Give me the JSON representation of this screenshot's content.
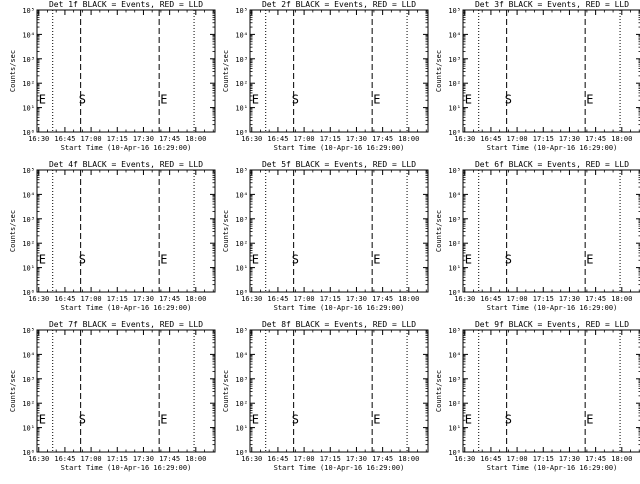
{
  "chart_data": {
    "type": "line",
    "layout": {
      "rows": 3,
      "cols": 3
    },
    "xlabel": "Start Time (10-Apr-16 16:29:00)",
    "ylabel": "Counts/sec",
    "x_tick_labels": [
      "16:30",
      "16:45",
      "17:00",
      "17:15",
      "17:30",
      "17:45",
      "18:00"
    ],
    "x_tick_minutes": [
      1,
      16,
      31,
      46,
      61,
      76,
      91
    ],
    "xlim_minutes": [
      0,
      102
    ],
    "y_scale": "log",
    "ylim": [
      1,
      100000
    ],
    "y_tick_labels": [
      "10⁰",
      "10¹",
      "10²",
      "10³",
      "10⁴",
      "10⁵"
    ],
    "markers": {
      "start_label": "S",
      "end_label": "E"
    },
    "panels": [
      {
        "title": "Det 1f BLACK = Events, RED = LLD",
        "dotted": [
          9,
          90
        ],
        "dashed": [
          25,
          70
        ],
        "end_left": 1,
        "s_at": 26,
        "e_at": 69.5
      },
      {
        "title": "Det 2f BLACK = Events, RED = LLD",
        "dotted": [
          9,
          90
        ],
        "dashed": [
          25,
          70
        ],
        "end_left": 1,
        "s_at": 26,
        "e_at": 69.5
      },
      {
        "title": "Det 3f BLACK = Events, RED = LLD",
        "dotted": [
          9,
          90
        ],
        "dashed": [
          25,
          70
        ],
        "end_left": 1,
        "s_at": 26,
        "e_at": 69.5
      },
      {
        "title": "Det 4f BLACK = Events, RED = LLD",
        "dotted": [
          9,
          90
        ],
        "dashed": [
          25,
          70
        ],
        "end_left": 1,
        "s_at": 26,
        "e_at": 69.5
      },
      {
        "title": "Det 5f BLACK = Events, RED = LLD",
        "dotted": [
          9,
          90
        ],
        "dashed": [
          25,
          70
        ],
        "end_left": 1,
        "s_at": 26,
        "e_at": 69.5
      },
      {
        "title": "Det 6f BLACK = Events, RED = LLD",
        "dotted": [
          9,
          90
        ],
        "dashed": [
          25,
          70
        ],
        "end_left": 1,
        "s_at": 26,
        "e_at": 69.5
      },
      {
        "title": "Det 7f BLACK = Events, RED = LLD",
        "dotted": [
          9,
          90
        ],
        "dashed": [
          25,
          70
        ],
        "end_left": 1,
        "s_at": 26,
        "e_at": 69.5
      },
      {
        "title": "Det 8f BLACK = Events, RED = LLD",
        "dotted": [
          9,
          90
        ],
        "dashed": [
          25,
          70
        ],
        "end_left": 1,
        "s_at": 26,
        "e_at": 69.5
      },
      {
        "title": "Det 9f BLACK = Events, RED = LLD",
        "dotted": [
          9,
          90
        ],
        "dashed": [
          25,
          70
        ],
        "end_left": 1,
        "s_at": 26,
        "e_at": 69.5
      }
    ],
    "grid": false,
    "series_colors": {
      "events": "#000000",
      "lld": "#ff0000"
    }
  }
}
